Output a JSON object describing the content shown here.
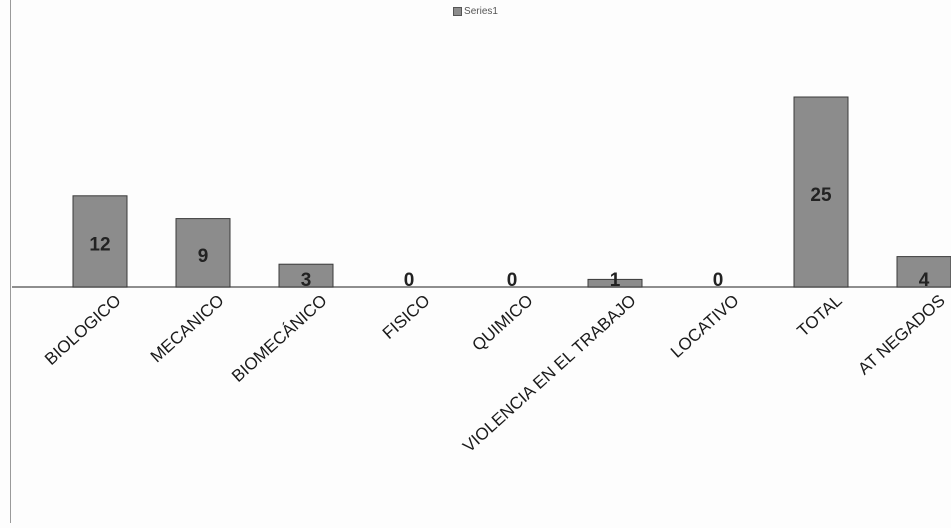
{
  "chart_data": {
    "type": "bar",
    "legend": [
      "Series1"
    ],
    "legend_position": "top",
    "categories": [
      "BIOLOGICO",
      "MECANICO",
      "BIOMECÁNICO",
      "FISICO",
      "QUIMICO",
      "VIOLENCIA EN EL TRABAJO",
      "LOCATIVO",
      "TOTAL",
      "AT NEGADOS"
    ],
    "series": [
      {
        "name": "Series1",
        "values": [
          12,
          9,
          3,
          0,
          0,
          1,
          0,
          25,
          4
        ]
      }
    ],
    "ylim": [
      0,
      27
    ],
    "grid": false,
    "bar_color": "#8c8c8c",
    "bar_border_color": "#3a3a3a",
    "label_color": "#222222"
  }
}
